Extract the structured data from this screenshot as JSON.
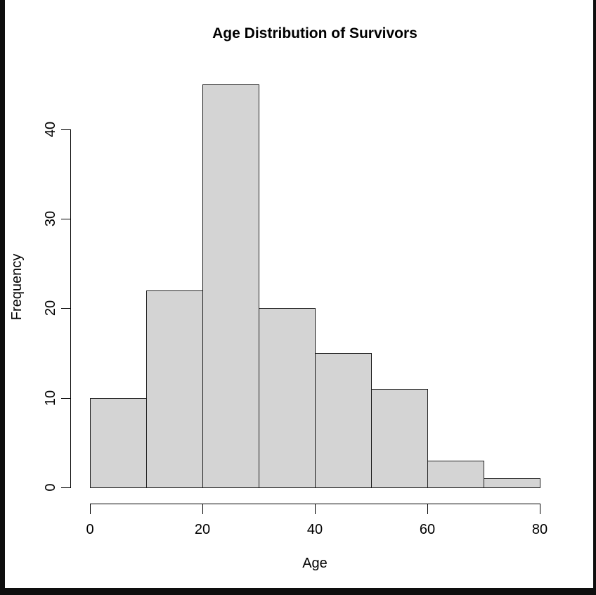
{
  "chart_data": {
    "type": "bar",
    "subtype": "histogram",
    "title": "Age Distribution of Survivors",
    "xlabel": "Age",
    "ylabel": "Frequency",
    "bin_width": 10,
    "bin_starts": [
      0,
      10,
      20,
      30,
      40,
      50,
      60,
      70
    ],
    "values": [
      10,
      22,
      45,
      20,
      15,
      11,
      3,
      1
    ],
    "x_ticks": [
      0,
      20,
      40,
      60,
      80
    ],
    "y_ticks": [
      0,
      10,
      20,
      30,
      40
    ],
    "xlim": [
      0,
      80
    ],
    "ylim": [
      0,
      45
    ],
    "grid": false,
    "legend": "none",
    "colors": {
      "bar_fill": "#d4d4d4",
      "bar_border": "#1f1f1f",
      "axis": "#000000",
      "text": "#000000",
      "background": "#ffffff",
      "frame": "#0e0e0e"
    }
  }
}
